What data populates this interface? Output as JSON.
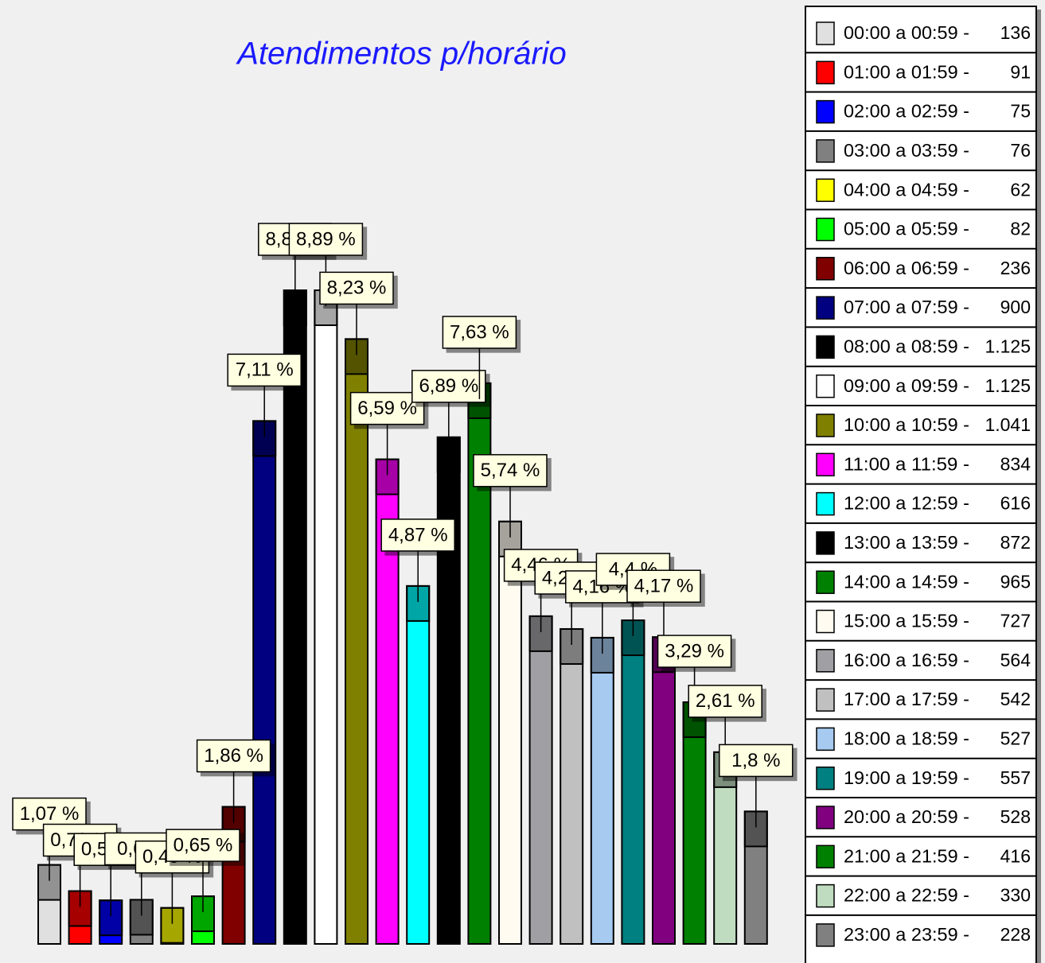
{
  "chart_data": {
    "type": "bar",
    "title": "Atendimentos p/horário",
    "categories": [
      "00:00 a 00:59 -",
      "01:00 a 01:59 -",
      "02:00 a 02:59 -",
      "03:00 a 03:59 -",
      "04:00 a 04:59 -",
      "05:00 a 05:59 -",
      "06:00 a 06:59 -",
      "07:00 a 07:59 -",
      "08:00 a 08:59 -",
      "09:00 a 09:59 -",
      "10:00 a 10:59 -",
      "11:00 a 11:59 -",
      "12:00 a 12:59 -",
      "13:00 a 13:59 -",
      "14:00 a 14:59 -",
      "15:00 a 15:59 -",
      "16:00 a 16:59 -",
      "17:00 a 17:59 -",
      "18:00 a 18:59 -",
      "19:00 a 19:59 -",
      "20:00 a 20:59 -",
      "21:00 a 21:59 -",
      "22:00 a 22:59 -",
      "23:00 a 23:59 -"
    ],
    "values": [
      136,
      91,
      75,
      76,
      62,
      82,
      236,
      900,
      1125,
      1125,
      1041,
      834,
      616,
      872,
      965,
      727,
      564,
      542,
      527,
      557,
      528,
      416,
      330,
      228
    ],
    "value_labels": [
      "136",
      "91",
      "75",
      "76",
      "62",
      "82",
      "236",
      "900",
      "1.125",
      "1.125",
      "1.041",
      "834",
      "616",
      "872",
      "965",
      "727",
      "564",
      "542",
      "527",
      "557",
      "528",
      "416",
      "330",
      "228"
    ],
    "percentages": [
      1.07,
      0.72,
      0.59,
      0.6,
      0.49,
      0.65,
      1.86,
      7.11,
      8.89,
      8.89,
      8.23,
      6.59,
      4.87,
      6.89,
      7.63,
      5.74,
      4.46,
      4.28,
      4.16,
      4.4,
      4.17,
      3.29,
      2.61,
      1.8
    ],
    "percentage_labels": [
      "1,07 %",
      "0,72 %",
      "0,59 %",
      "0,6 %",
      "0,49 %",
      "0,65 %",
      "1,86 %",
      "7,11 %",
      "8,89 %",
      "8,89 %",
      "8,23 %",
      "6,59 %",
      "4,87 %",
      "6,89 %",
      "7,63 %",
      "5,74 %",
      "4,46 %",
      "4,28 %",
      "4,16 %",
      "4,4 %",
      "4,17 %",
      "3,29 %",
      "2,61 %",
      "1,8 %"
    ],
    "colors": [
      "#e0e0e0",
      "#ff0000",
      "#0000ff",
      "#808080",
      "#ffff00",
      "#00ff00",
      "#800000",
      "#000080",
      "#000000",
      "#ffffff",
      "#808000",
      "#ff00ff",
      "#00ffff",
      "#000000",
      "#008000",
      "#fffbf0",
      "#a0a0a4",
      "#c0c0c0",
      "#a6caf0",
      "#008080",
      "#800080",
      "#008000",
      "#c0dcc0",
      "#808080"
    ]
  }
}
